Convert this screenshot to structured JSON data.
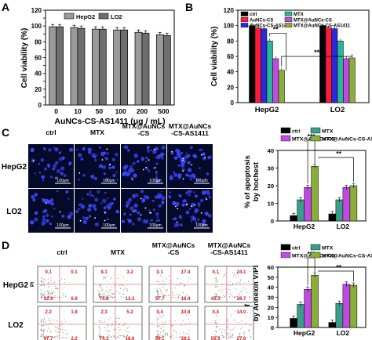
{
  "colors": {
    "hepg2_bar": "#9a9a9a",
    "lo2_bar": "#6e6e6e",
    "ctrl": "#000000",
    "mtx": "#3a9f8a",
    "aunccs": "#c04be0",
    "as1411": "#8aae3a",
    "b_ctrl": "#000000",
    "b_aunccs": "#ff1a3a",
    "b_as1411_pre": "#2a2ad8",
    "b_mtx": "#2bb59a",
    "b_mtx_cs": "#c04be0",
    "b_mtx_as": "#8aae3a",
    "cell_bg": "#050a2a",
    "nucleus": "#3b48ff",
    "quad_text": "#cc1a1a",
    "quad_line": "#cc4444"
  },
  "panels": {
    "A": {
      "letter": "A"
    },
    "B": {
      "letter": "B"
    },
    "C": {
      "letter": "C"
    },
    "D": {
      "letter": "D"
    }
  },
  "scale_bar": "100μm",
  "image_cols": [
    "ctrl",
    "MTX",
    "MTX@AuNCs\n-CS",
    "MTX@AuNCs\n-CS-AS1411"
  ],
  "cell_rows": [
    "HepG2",
    "LO2"
  ],
  "flow_axes": {
    "y": "PI",
    "x": "Annexin V"
  },
  "flow_quadrants": [
    [
      {
        "ul": "0.1",
        "ur": "0.1",
        "ll": "92.9",
        "lr": "6.9"
      },
      {
        "ul": "8.1",
        "ur": "3.2",
        "ll": "75.8",
        "lr": "13.3"
      },
      {
        "ul": "0.1",
        "ur": "17.4",
        "ll": "57.7",
        "lr": "18.4"
      },
      {
        "ul": "0.1",
        "ur": "24.1",
        "ll": "45.3",
        "lr": "26.7"
      }
    ],
    [
      {
        "ul": "2.2",
        "ur": "1.8",
        "ll": "97.7",
        "lr": "2.2"
      },
      {
        "ul": "2.3",
        "ur": "5.2",
        "ll": "74.1",
        "lr": "18.6"
      },
      {
        "ul": "0.4",
        "ur": "10.8",
        "ll": "59.1",
        "lr": "28.1"
      },
      {
        "ul": "0.4",
        "ur": "14.0",
        "ll": "55.3",
        "lr": "27.6"
      }
    ]
  ],
  "chart_data": [
    {
      "panel": "A",
      "type": "bar",
      "xlabel": "AuNCs-CS-AS1411 (μg / mL)",
      "ylabel": "Cell viability (%)",
      "ylim": [
        0,
        120
      ],
      "yticks": [
        "0",
        "10",
        "20",
        "30",
        "40",
        "50",
        "60",
        "70",
        "80",
        "90",
        "100",
        "110",
        "120"
      ],
      "categories": [
        "0",
        "10",
        "50",
        "100",
        "200",
        "500"
      ],
      "series": [
        {
          "name": "HepG2",
          "values": [
            99,
            98,
            96,
            95,
            92,
            89
          ]
        },
        {
          "name": "LO2",
          "values": [
            99,
            97,
            96,
            95,
            91,
            88
          ]
        }
      ],
      "legend": [
        "HepG2",
        "LO2"
      ]
    },
    {
      "panel": "B",
      "type": "bar",
      "ylabel": "Cell viability (%)",
      "ylim": [
        0,
        120
      ],
      "yticks": [
        "0",
        "20",
        "40",
        "60",
        "80",
        "100",
        "120"
      ],
      "categories": [
        "HepG2",
        "LO2"
      ],
      "series": [
        {
          "name": "ctrl",
          "values": [
            100,
            100
          ]
        },
        {
          "name": "AuNCs-CS",
          "values": [
            97,
            97
          ]
        },
        {
          "name": "AuNCs-CS-AS1411",
          "values": [
            96,
            96
          ]
        },
        {
          "name": "MTX",
          "values": [
            80,
            80
          ]
        },
        {
          "name": "MTX@AuNCs-CS",
          "values": [
            57,
            57
          ]
        },
        {
          "name": "MTX@AuNCs-CS-AS1411",
          "values": [
            42,
            58
          ]
        }
      ],
      "significance": [
        "**",
        "**"
      ]
    },
    {
      "panel": "C",
      "type": "bar",
      "ylabel": "% of apoptosis\nby hochest",
      "ylim": [
        0,
        40
      ],
      "yticks": [
        "0",
        "10",
        "20",
        "30",
        "40"
      ],
      "categories": [
        "HepG2",
        "LO2"
      ],
      "series": [
        {
          "name": "ctrl",
          "values": [
            3,
            4
          ]
        },
        {
          "name": "MTX",
          "values": [
            12,
            12
          ]
        },
        {
          "name": "MTX@AuNCs-CS",
          "values": [
            19,
            19
          ]
        },
        {
          "name": "MTX@AuNCs-CS-AS1411",
          "values": [
            31,
            20
          ]
        }
      ],
      "significance": [
        "***",
        "**"
      ]
    },
    {
      "panel": "D",
      "type": "bar",
      "ylabel": "% of apoptosis\nby Annexin V/PI",
      "ylim": [
        0,
        60
      ],
      "yticks": [
        "0",
        "10",
        "20",
        "30",
        "40",
        "50",
        "60"
      ],
      "categories": [
        "HepG2",
        "LO2"
      ],
      "series": [
        {
          "name": "ctrl",
          "values": [
            9,
            5
          ]
        },
        {
          "name": "MTX",
          "values": [
            23,
            24
          ]
        },
        {
          "name": "MTX@AuNCs-CS",
          "values": [
            38,
            43
          ]
        },
        {
          "name": "MTX@AuNCs-CS-AS1411",
          "values": [
            52,
            42
          ]
        }
      ],
      "significance": [
        "***",
        "**"
      ]
    }
  ]
}
